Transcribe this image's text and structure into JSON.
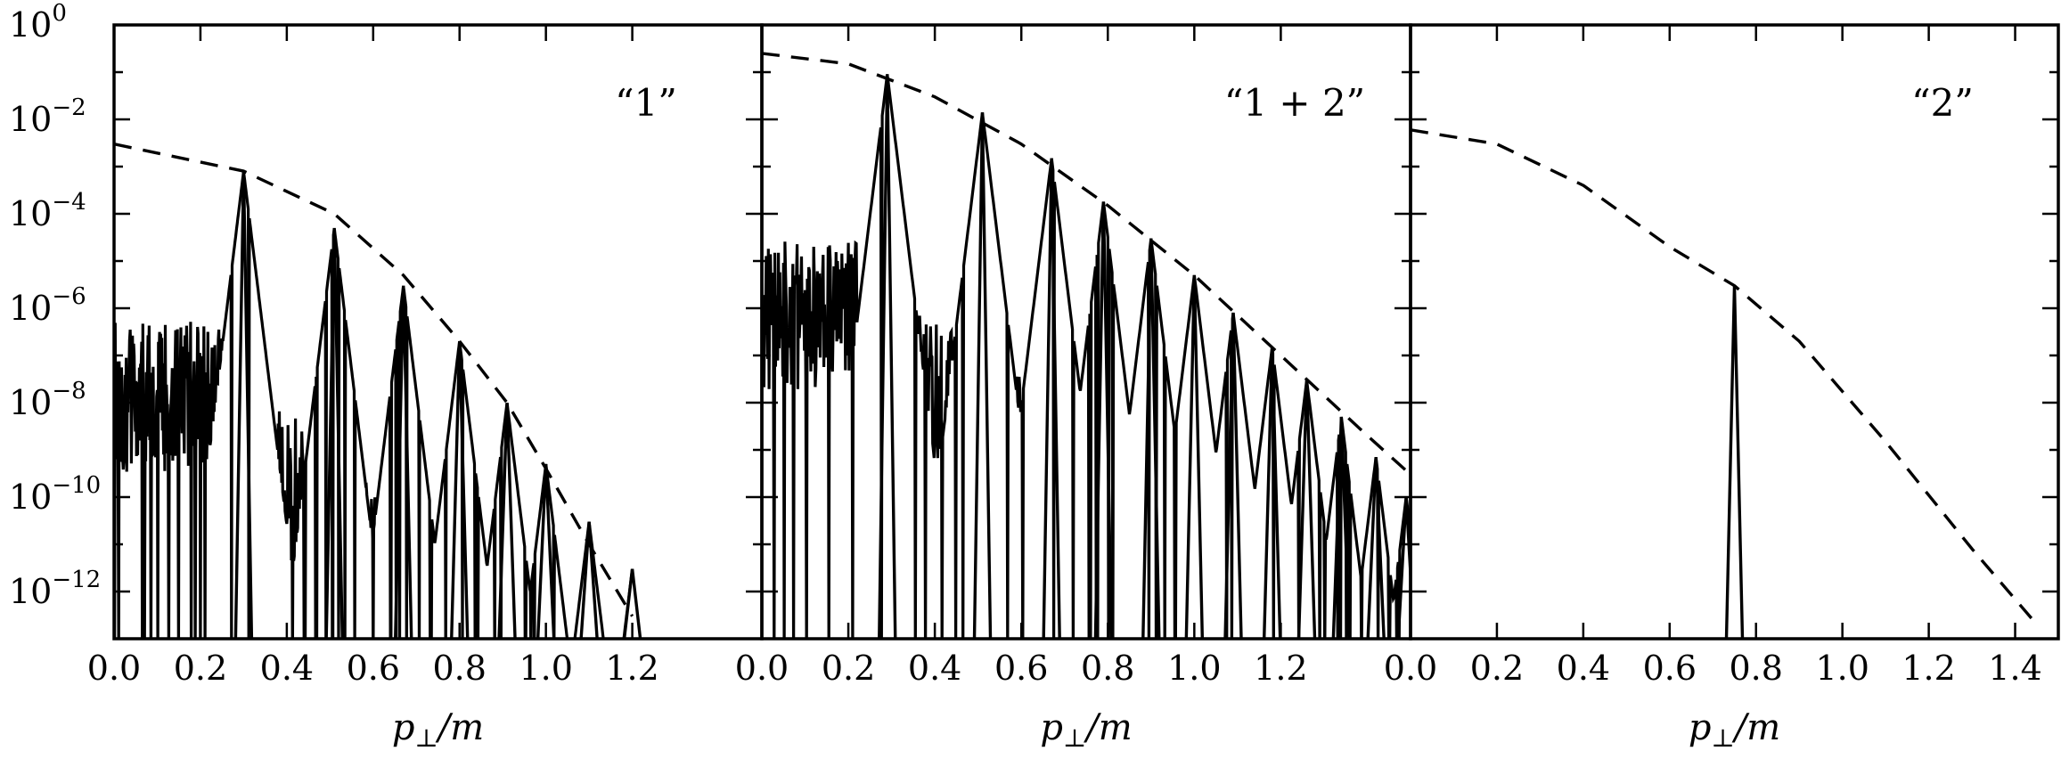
{
  "chart_data": {
    "type": "line",
    "y_scale": "log",
    "ylim": [
      1e-13,
      1
    ],
    "y_ticks": [
      {
        "value": 1,
        "base": "10",
        "exp": "0"
      },
      {
        "value": 0.01,
        "base": "10",
        "exp": "−2"
      },
      {
        "value": 0.0001,
        "base": "10",
        "exp": "−4"
      },
      {
        "value": 1e-06,
        "base": "10",
        "exp": "−6"
      },
      {
        "value": 1e-08,
        "base": "10",
        "exp": "−8"
      },
      {
        "value": 1e-10,
        "base": "10",
        "exp": "−10"
      },
      {
        "value": 1e-12,
        "base": "10",
        "exp": "−12"
      }
    ],
    "line_color": "#000000",
    "panels": [
      {
        "label": "“1”",
        "xlabel_main": "p",
        "xlabel_sub": "⊥",
        "xlabel_rest": "/m",
        "xlim": [
          0,
          1.5
        ],
        "x_ticks": [
          "0.0",
          "0.2",
          "0.4",
          "0.6",
          "0.8",
          "1.0",
          "1.2"
        ],
        "envelope": {
          "name": "envelope",
          "style": "dashed",
          "x": [
            0,
            0.3,
            0.51,
            0.67,
            0.8,
            0.91,
            1.0,
            1.1,
            1.2
          ],
          "y": [
            0.003,
            0.0008,
            0.0001,
            5e-06,
            2e-07,
            1e-08,
            4e-10,
            1e-11,
            3e-13
          ]
        },
        "peaks": [
          {
            "x": 0.3,
            "y": 0.0008
          },
          {
            "x": 0.51,
            "y": 5e-05
          },
          {
            "x": 0.67,
            "y": 3e-06
          },
          {
            "x": 0.8,
            "y": 2e-07
          },
          {
            "x": 0.91,
            "y": 1e-08
          },
          {
            "x": 1.0,
            "y": 5e-10
          },
          {
            "x": 1.1,
            "y": 3e-11
          },
          {
            "x": 1.2,
            "y": 3e-12
          }
        ],
        "plateau": {
          "x_end": 0.27,
          "y": 6e-07
        },
        "cutoff": 1.2
      },
      {
        "label": "“1 + 2”",
        "xlabel_main": "p",
        "xlabel_sub": "⊥",
        "xlabel_rest": "/m",
        "xlim": [
          0,
          1.5
        ],
        "x_ticks": [
          "0.0",
          "0.2",
          "0.4",
          "0.6",
          "0.8",
          "1.0",
          "1.2"
        ],
        "envelope": {
          "name": "envelope",
          "style": "dashed",
          "x": [
            0,
            0.2,
            0.4,
            0.6,
            0.8,
            1.0,
            1.2,
            1.4,
            1.5
          ],
          "y": [
            0.25,
            0.15,
            0.03,
            0.003,
            0.00015,
            5e-06,
            1e-07,
            2e-09,
            3e-10
          ]
        },
        "peaks": [
          {
            "x": 0.29,
            "y": 0.09
          },
          {
            "x": 0.51,
            "y": 0.014
          },
          {
            "x": 0.67,
            "y": 0.0015
          },
          {
            "x": 0.79,
            "y": 0.00018
          },
          {
            "x": 0.9,
            "y": 3e-05
          },
          {
            "x": 1.0,
            "y": 5e-06
          },
          {
            "x": 1.09,
            "y": 8e-07
          },
          {
            "x": 1.18,
            "y": 1.5e-07
          },
          {
            "x": 1.26,
            "y": 3e-08
          },
          {
            "x": 1.34,
            "y": 5e-09
          },
          {
            "x": 1.42,
            "y": 7e-10
          },
          {
            "x": 1.49,
            "y": 1e-10
          }
        ],
        "plateau": {
          "x_end": 0.25,
          "y": 3e-05
        },
        "cutoff": 1.5
      },
      {
        "label": "“2”",
        "xlabel_main": "p",
        "xlabel_sub": "⊥",
        "xlabel_rest": "/m",
        "xlim": [
          0,
          1.5
        ],
        "x_ticks": [
          "0.0",
          "0.2",
          "0.4",
          "0.6",
          "0.8",
          "1.0",
          "1.2",
          "1.4"
        ],
        "envelope": {
          "name": "envelope",
          "style": "dashed",
          "x": [
            0,
            0.2,
            0.4,
            0.6,
            0.75,
            0.9,
            1.1,
            1.3,
            1.45
          ],
          "y": [
            0.006,
            0.003,
            0.0004,
            2e-05,
            3e-06,
            2e-07,
            1.5e-09,
            8e-12,
            2e-13
          ]
        },
        "peaks": [
          {
            "x": 0.75,
            "y": 3e-06
          }
        ],
        "plateau": null,
        "cutoff": 0.0
      }
    ]
  }
}
